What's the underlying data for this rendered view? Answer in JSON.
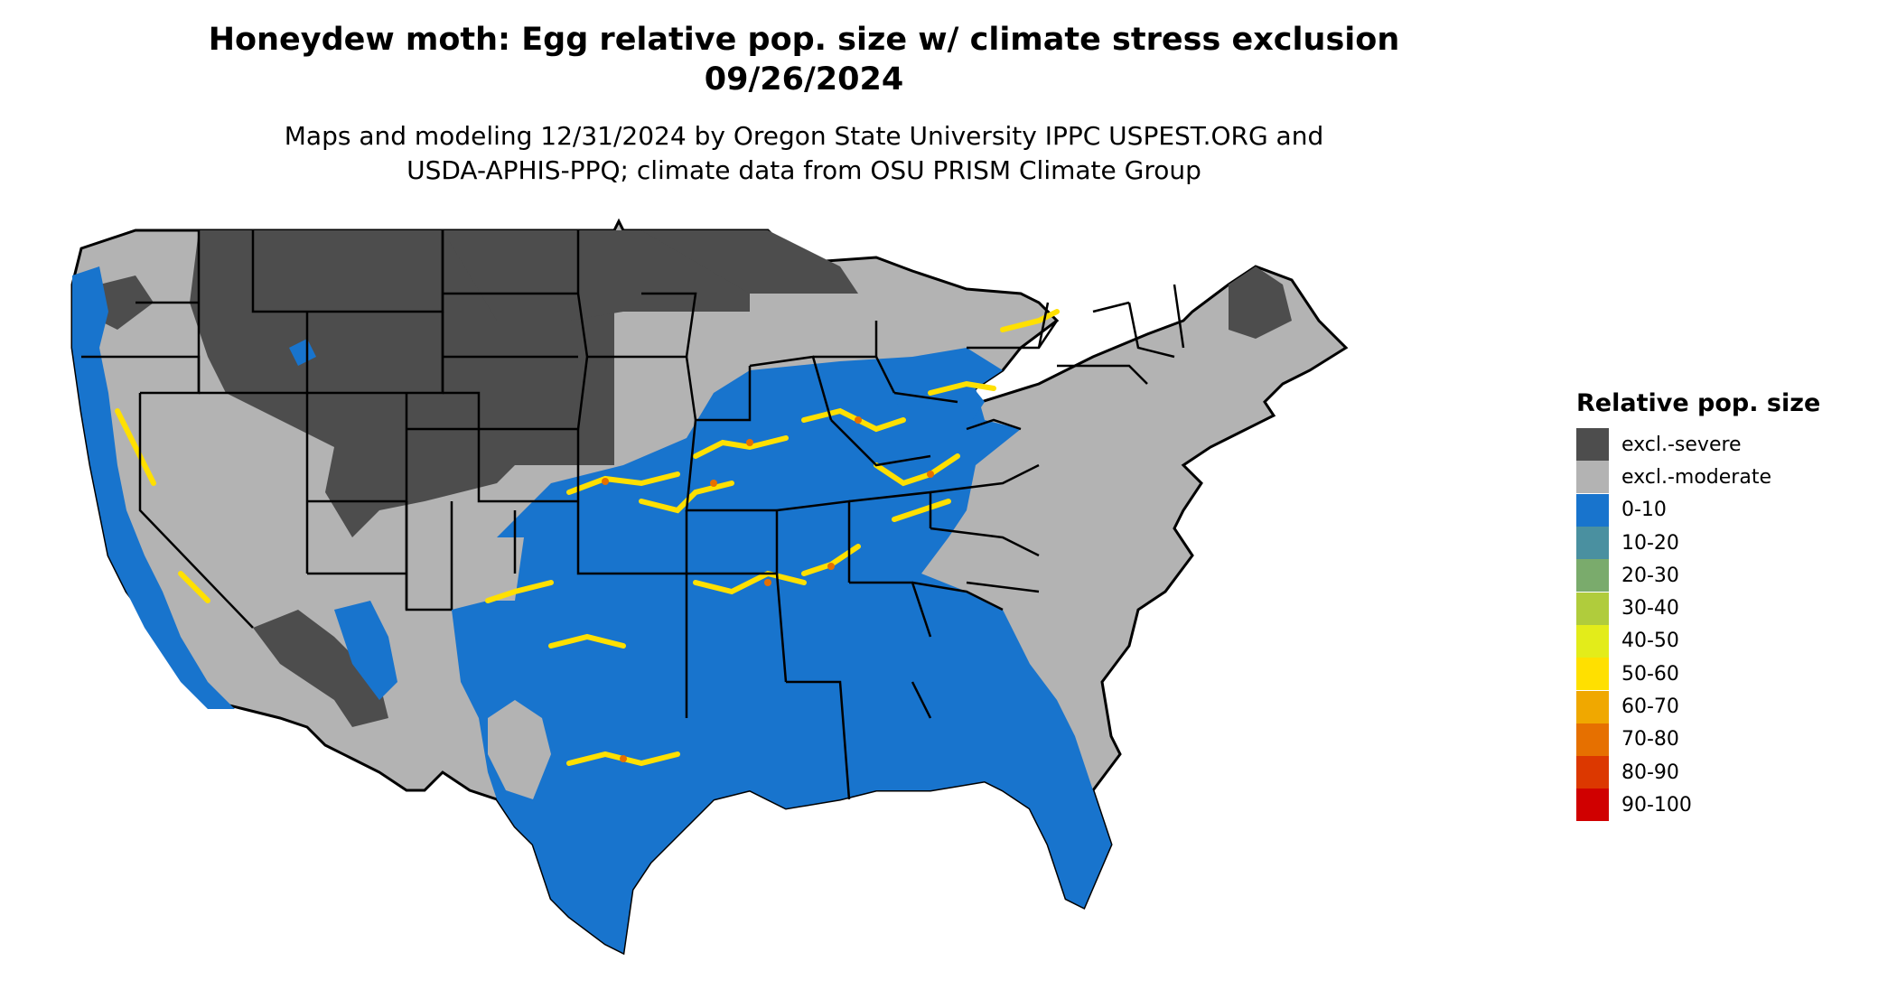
{
  "title": {
    "line1": "Honeydew moth: Egg relative pop. size w/ climate stress exclusion",
    "line2": "09/26/2024"
  },
  "subtitle": {
    "line1": "Maps and modeling 12/31/2024 by Oregon State University IPPC USPEST.ORG and",
    "line2": "USDA-APHIS-PPQ; climate data from OSU PRISM Climate Group"
  },
  "legend": {
    "title": "Relative pop. size",
    "items": [
      {
        "label": "excl.-severe",
        "color": "#4d4d4d"
      },
      {
        "label": "excl.-moderate",
        "color": "#b3b3b3"
      },
      {
        "label": "0-10",
        "color": "#1874cd"
      },
      {
        "label": "10-20",
        "color": "#4a90a0"
      },
      {
        "label": "20-30",
        "color": "#7aab6c"
      },
      {
        "label": "30-40",
        "color": "#b0cc3c"
      },
      {
        "label": "40-50",
        "color": "#e3ec1a"
      },
      {
        "label": "50-60",
        "color": "#ffe000"
      },
      {
        "label": "60-70",
        "color": "#f0a800"
      },
      {
        "label": "70-80",
        "color": "#e67000"
      },
      {
        "label": "80-90",
        "color": "#dc3800"
      },
      {
        "label": "90-100",
        "color": "#d00000"
      }
    ]
  },
  "map_colors": {
    "severe": "#4d4d4d",
    "moderate": "#b3b3b3",
    "low": "#1874cd",
    "mid": "#ffe000",
    "high": "#e67000",
    "boundary": "#000000"
  }
}
